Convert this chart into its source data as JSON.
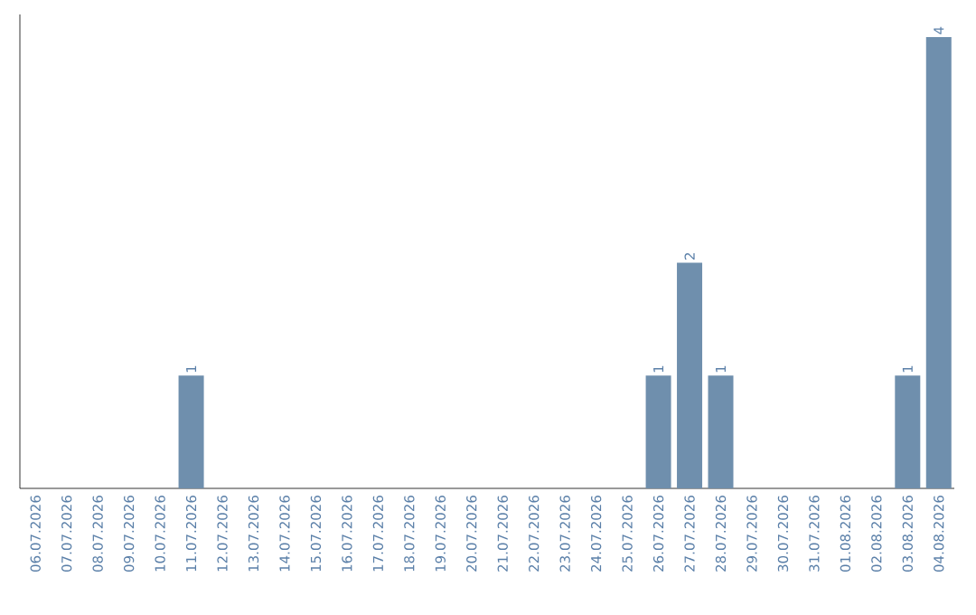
{
  "chart_data": {
    "type": "bar",
    "categories": [
      "06.07.2026",
      "07.07.2026",
      "08.07.2026",
      "09.07.2026",
      "10.07.2026",
      "11.07.2026",
      "12.07.2026",
      "13.07.2026",
      "14.07.2026",
      "15.07.2026",
      "16.07.2026",
      "17.07.2026",
      "18.07.2026",
      "19.07.2026",
      "20.07.2026",
      "21.07.2026",
      "22.07.2026",
      "23.07.2026",
      "24.07.2026",
      "25.07.2026",
      "26.07.2026",
      "27.07.2026",
      "28.07.2026",
      "29.07.2026",
      "30.07.2026",
      "31.07.2026",
      "01.08.2026",
      "02.08.2026",
      "03.08.2026",
      "04.08.2026"
    ],
    "values": [
      0,
      0,
      0,
      0,
      0,
      1,
      0,
      0,
      0,
      0,
      0,
      0,
      0,
      0,
      0,
      0,
      0,
      0,
      0,
      0,
      1,
      2,
      1,
      0,
      0,
      0,
      0,
      0,
      1,
      4
    ],
    "value_labels": [
      null,
      null,
      null,
      null,
      null,
      "1",
      null,
      null,
      null,
      null,
      null,
      null,
      null,
      null,
      null,
      null,
      null,
      null,
      null,
      null,
      "1",
      "2",
      "1",
      null,
      null,
      null,
      null,
      null,
      "1",
      "4"
    ],
    "color": "#6f8fad",
    "tick_labels": "x"
  }
}
